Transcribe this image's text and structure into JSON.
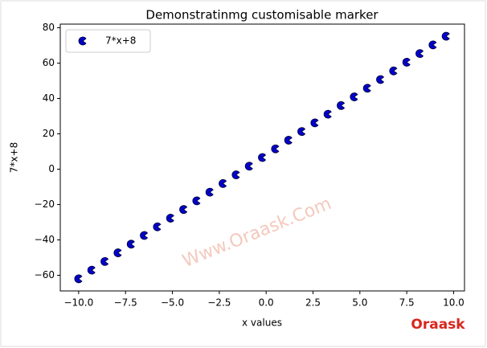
{
  "chart_data": {
    "type": "scatter",
    "title": "Demonstratinmg customisable marker",
    "x_label": "x values",
    "y_label": "7*x+8",
    "watermark": "Www.Oraask.Com",
    "logo_text": "Oraask",
    "xlim": [
      -10.98,
      10.58
    ],
    "ylim": [
      -68.86,
      82.06
    ],
    "xticks": [
      {
        "value": -10,
        "label": "−10.0"
      },
      {
        "value": -7.5,
        "label": "−7.5"
      },
      {
        "value": -5,
        "label": "−5.0"
      },
      {
        "value": -2.5,
        "label": "−2.5"
      },
      {
        "value": 0,
        "label": "0.0"
      },
      {
        "value": 2.5,
        "label": "2.5"
      },
      {
        "value": 5,
        "label": "5.0"
      },
      {
        "value": 7.5,
        "label": "7.5"
      },
      {
        "value": 10,
        "label": "10.0"
      }
    ],
    "yticks": [
      {
        "value": -60,
        "label": "−60"
      },
      {
        "value": -40,
        "label": "−40"
      },
      {
        "value": -20,
        "label": "−20"
      },
      0,
      20,
      40,
      60,
      80
    ],
    "legend": "upper left",
    "series": [
      {
        "name": "7*x+8",
        "color": "#0000cc",
        "x": [
          -10,
          -9.3,
          -8.6,
          -7.9,
          -7.2,
          -6.5,
          -5.8,
          -5.1,
          -4.4,
          -3.7,
          -3,
          -2.3,
          -1.6,
          -0.9,
          -0.2,
          0.5,
          1.2,
          1.9,
          2.6,
          3.3,
          4,
          4.7,
          5.4,
          6.1,
          6.8,
          7.5,
          8.2,
          8.9,
          9.6
        ],
        "values": [
          -62,
          -57.1,
          -52.2,
          -47.3,
          -42.4,
          -37.5,
          -32.6,
          -27.7,
          -22.8,
          -17.9,
          -13,
          -8.1,
          -3.2,
          1.7,
          6.6,
          11.5,
          16.4,
          21.3,
          26.2,
          31.1,
          36,
          40.9,
          45.8,
          50.7,
          55.6,
          60.5,
          65.4,
          70.3,
          75.2
        ]
      }
    ]
  }
}
